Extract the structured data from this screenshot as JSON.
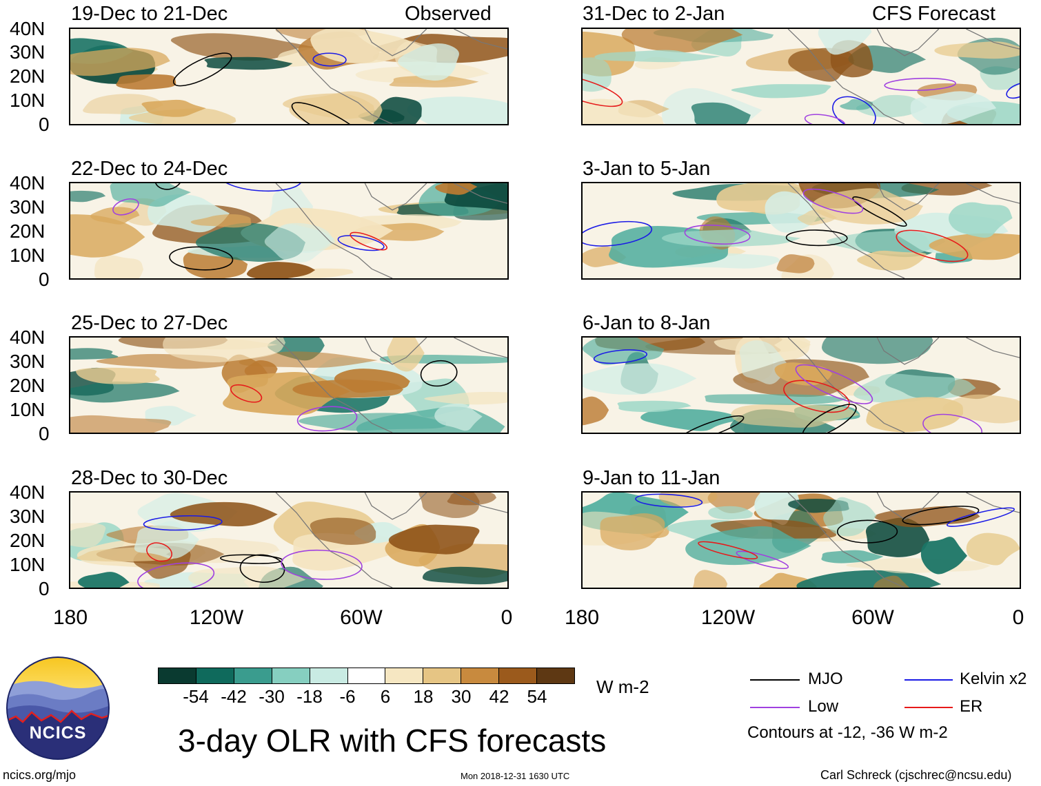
{
  "observed_label": "Observed",
  "forecast_label": "CFS Forecast",
  "panels": [
    {
      "title": "19-Dec to 21-Dec"
    },
    {
      "title": "22-Dec to 24-Dec"
    },
    {
      "title": "25-Dec to 27-Dec"
    },
    {
      "title": "28-Dec to 30-Dec"
    },
    {
      "title": "31-Dec to 2-Jan"
    },
    {
      "title": "3-Jan to 5-Jan"
    },
    {
      "title": "6-Jan to 8-Jan"
    },
    {
      "title": "9-Jan to 11-Jan"
    }
  ],
  "y_ticks": [
    "40N",
    "30N",
    "20N",
    "10N",
    "0"
  ],
  "x_ticks": [
    "180",
    "120W",
    "60W",
    "0"
  ],
  "colorbar": {
    "colors": [
      "#0a3a30",
      "#0f6a5c",
      "#3a9c8e",
      "#86cfc0",
      "#c9ebe3",
      "#ffffff",
      "#f6e7c2",
      "#e6c584",
      "#c88a3e",
      "#9b5a1c",
      "#5e3813"
    ],
    "labels": [
      "-54",
      "-42",
      "-30",
      "-18",
      "-6",
      "6",
      "18",
      "30",
      "42",
      "54"
    ],
    "units": "W m-2"
  },
  "legend": {
    "items": [
      {
        "label": "MJO",
        "color": "#000000"
      },
      {
        "label": "Kelvin x2",
        "color": "#1a1ae6"
      },
      {
        "label": "Low",
        "color": "#a040e0"
      },
      {
        "label": "ER",
        "color": "#e61a1a"
      }
    ],
    "contours_note": "Contours at -12, -36 W m-2"
  },
  "logo": {
    "text": "NCICS"
  },
  "title": "3-day OLR with CFS forecasts",
  "footer": {
    "left": "ncics.org/mjo",
    "center": "Mon 2018-12-31 1630 UTC",
    "right": "Carl Schreck (cjschrec@ncsu.edu)"
  }
}
